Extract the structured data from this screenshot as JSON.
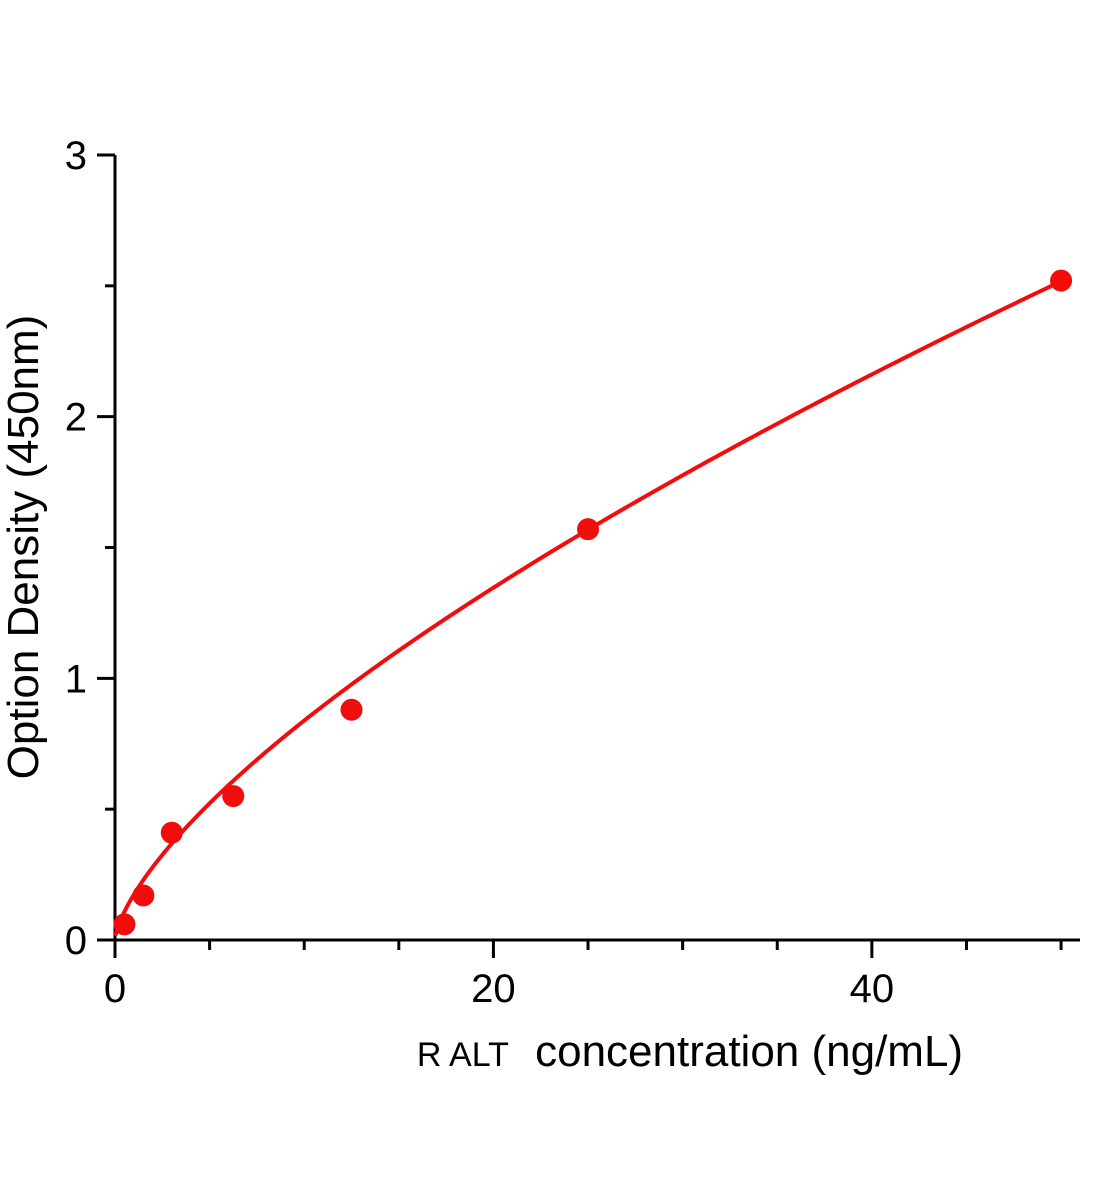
{
  "chart_data": {
    "type": "scatter",
    "title": "",
    "xlabel_prefix": "R ALT",
    "xlabel_main": "concentration (ng/mL)",
    "xlabel": "R ALT concentration (ng/mL)",
    "ylabel": "Option Density (450nm)",
    "series": [
      {
        "name": "standard-curve-points",
        "x": [
          0.5,
          1.5,
          3,
          6.25,
          12.5,
          25,
          50
        ],
        "y": [
          0.06,
          0.17,
          0.41,
          0.55,
          0.88,
          1.57,
          2.52
        ]
      }
    ],
    "fit_curve": {
      "type": "power",
      "a": 0.174,
      "b": 0.683,
      "x_start": 0.05,
      "x_end": 50
    },
    "xlim": [
      0,
      51
    ],
    "ylim": [
      0,
      3
    ],
    "x_major_ticks": [
      0,
      20,
      40
    ],
    "x_minor_step": 5,
    "y_major_ticks": [
      0,
      1,
      2,
      3
    ],
    "y_minor_step": 0.5,
    "grid": false,
    "legend": "none",
    "point_color": "#f20d0d",
    "curve_color": "#f20d0d",
    "axis_color": "#000000",
    "point_radius": 11
  }
}
